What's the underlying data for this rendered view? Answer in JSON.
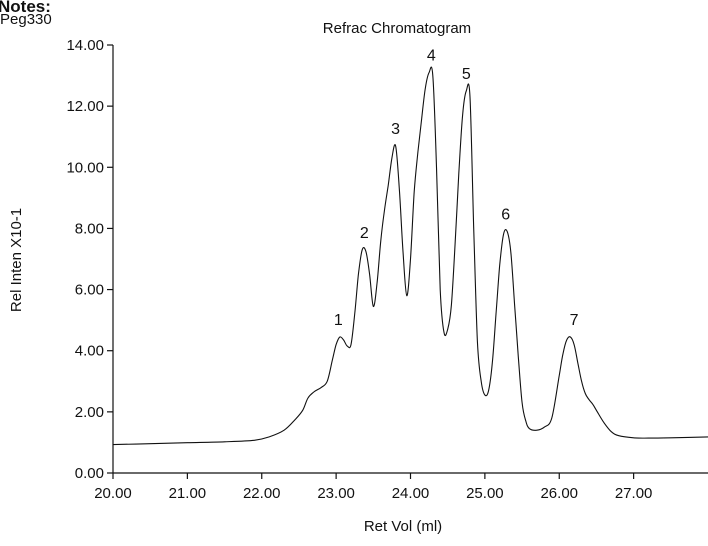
{
  "header": {
    "cut_text": "Notes:",
    "sample": "Peg330"
  },
  "chart_data": {
    "type": "line",
    "title": "Refrac Chromatogram",
    "xlabel": "Ret Vol (ml)",
    "ylabel": "Rel Inten X10-1",
    "xlim": [
      20.0,
      28.0
    ],
    "ylim": [
      0.0,
      14.0
    ],
    "xticks": [
      20,
      21,
      22,
      23,
      24,
      25,
      26,
      27
    ],
    "xtick_labels": [
      "20.00",
      "21.00",
      "22.00",
      "23.00",
      "24.00",
      "25.00",
      "26.00",
      "27.00"
    ],
    "yticks": [
      0,
      2,
      4,
      6,
      8,
      10,
      12,
      14
    ],
    "ytick_labels": [
      "0.00",
      "2.00",
      "4.00",
      "6.00",
      "8.00",
      "10.00",
      "12.00",
      "14.00"
    ],
    "grid": false,
    "line_color": "#111111",
    "series": [
      {
        "x": [
          20.0,
          20.5,
          21.0,
          21.5,
          21.9,
          22.1,
          22.3,
          22.45,
          22.55,
          22.62,
          22.7,
          22.8,
          22.88,
          22.95,
          23.0,
          23.05,
          23.1,
          23.15,
          23.2,
          23.25,
          23.3,
          23.35,
          23.4,
          23.45,
          23.5,
          23.55,
          23.6,
          23.65,
          23.7,
          23.75,
          23.8,
          23.85,
          23.9,
          23.95,
          24.0,
          24.05,
          24.1,
          24.15,
          24.2,
          24.25,
          24.3,
          24.35,
          24.4,
          24.45,
          24.5,
          24.55,
          24.6,
          24.65,
          24.7,
          24.75,
          24.8,
          24.85,
          24.9,
          24.95,
          25.0,
          25.05,
          25.1,
          25.15,
          25.2,
          25.25,
          25.3,
          25.35,
          25.4,
          25.45,
          25.5,
          25.55,
          25.6,
          25.7,
          25.8,
          25.9,
          26.0,
          26.05,
          26.1,
          26.15,
          26.2,
          26.25,
          26.3,
          26.35,
          26.4,
          26.45,
          26.5,
          26.6,
          26.7,
          26.8,
          27.0,
          27.2,
          27.5,
          28.0
        ],
        "y": [
          0.93,
          0.96,
          0.99,
          1.02,
          1.07,
          1.18,
          1.4,
          1.75,
          2.05,
          2.45,
          2.65,
          2.8,
          3.0,
          3.7,
          4.2,
          4.45,
          4.35,
          4.15,
          4.2,
          5.2,
          6.5,
          7.3,
          7.25,
          6.5,
          5.45,
          6.2,
          7.6,
          8.6,
          9.4,
          10.3,
          10.7,
          9.3,
          7.2,
          5.8,
          7.0,
          9.2,
          10.5,
          11.6,
          12.6,
          13.1,
          13.0,
          10.0,
          6.0,
          4.6,
          4.7,
          5.5,
          7.5,
          9.8,
          11.7,
          12.5,
          12.3,
          8.0,
          4.3,
          3.0,
          2.55,
          2.7,
          3.6,
          5.2,
          6.8,
          7.8,
          7.9,
          7.2,
          5.5,
          3.8,
          2.3,
          1.7,
          1.45,
          1.4,
          1.5,
          1.8,
          3.2,
          3.9,
          4.35,
          4.45,
          4.2,
          3.6,
          3.0,
          2.6,
          2.4,
          2.25,
          2.05,
          1.65,
          1.35,
          1.22,
          1.15,
          1.14,
          1.15,
          1.18
        ]
      }
    ],
    "annotations": [
      {
        "text": "1",
        "x": 23.03,
        "y": 4.45
      },
      {
        "text": "2",
        "x": 23.38,
        "y": 7.3
      },
      {
        "text": "3",
        "x": 23.8,
        "y": 10.7
      },
      {
        "text": "4",
        "x": 24.28,
        "y": 13.1
      },
      {
        "text": "5",
        "x": 24.75,
        "y": 12.5
      },
      {
        "text": "6",
        "x": 25.28,
        "y": 7.9
      },
      {
        "text": "7",
        "x": 26.2,
        "y": 4.45
      }
    ]
  }
}
